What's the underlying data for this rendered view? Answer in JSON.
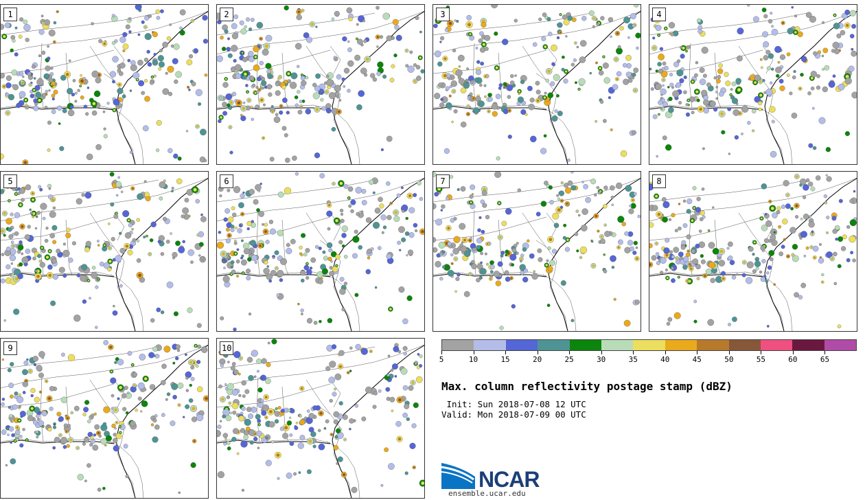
{
  "panels": [
    {
      "label": "1"
    },
    {
      "label": "2"
    },
    {
      "label": "3"
    },
    {
      "label": "4"
    },
    {
      "label": "5"
    },
    {
      "label": "6"
    },
    {
      "label": "7"
    },
    {
      "label": "8"
    },
    {
      "label": "9"
    },
    {
      "label": "10"
    }
  ],
  "colorbar": {
    "colors": [
      "#a3a3a3",
      "#b3bde8",
      "#5566d6",
      "#4f9494",
      "#0b850b",
      "#b8dcb8",
      "#ecde5e",
      "#e9aa1c",
      "#b77a2c",
      "#87573a",
      "#ef5080",
      "#6b1840",
      "#b04ba8"
    ],
    "tick_labels": [
      "5",
      "10",
      "15",
      "20",
      "25",
      "30",
      "35",
      "40",
      "45",
      "50",
      "55",
      "60",
      "65"
    ]
  },
  "title": "Max. column reflectivity postage stamp (dBZ)",
  "init_text": " Init: Sun 2018-07-08 12 UTC",
  "valid_text": "Valid: Mon 2018-07-09 00 UTC",
  "logo": {
    "name": "NCAR",
    "url": "ensemble.ucar.edu"
  }
}
